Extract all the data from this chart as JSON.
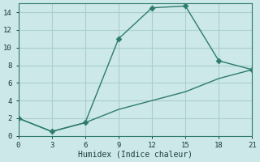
{
  "title": "",
  "xlabel": "Humidex (Indice chaleur)",
  "ylabel": "",
  "bg_color": "#cce8e8",
  "line_color": "#2e7b6e",
  "grid_color": "#aacece",
  "line1_x": [
    0,
    3,
    6,
    9,
    12,
    15,
    18,
    21
  ],
  "line1_y": [
    2,
    0.5,
    1.5,
    11,
    14.5,
    14.7,
    8.5,
    7.5
  ],
  "line2_x": [
    0,
    3,
    6,
    9,
    12,
    15,
    18,
    21
  ],
  "line2_y": [
    2,
    0.5,
    1.5,
    3.0,
    4.0,
    5.0,
    6.5,
    7.5
  ],
  "xlim": [
    0,
    21
  ],
  "ylim": [
    0,
    15
  ],
  "xticks": [
    0,
    3,
    6,
    9,
    12,
    15,
    18,
    21
  ],
  "yticks": [
    0,
    2,
    4,
    6,
    8,
    10,
    12,
    14
  ],
  "markersize": 3.5
}
